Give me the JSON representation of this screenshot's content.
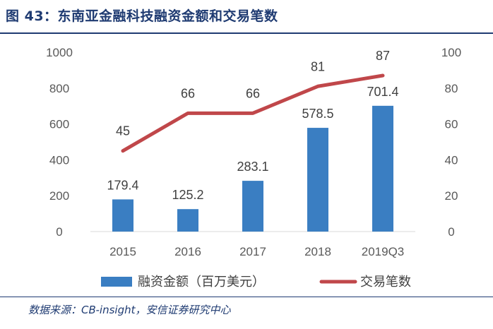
{
  "header": {
    "title": "图 43：东南亚金融科技融资金额和交易笔数"
  },
  "footer": {
    "source": "数据来源：CB-insight，安信证券研究中心"
  },
  "colors": {
    "bar": "#3a7ec2",
    "line": "#c0474a",
    "title": "#1f3b72"
  },
  "chart_data": {
    "type": "bar",
    "categories": [
      "2015",
      "2016",
      "2017",
      "2018",
      "2019Q3"
    ],
    "series": [
      {
        "name": "融资金额（百万美元）",
        "type": "bar",
        "axis": "left",
        "values": [
          179.4,
          125.2,
          283.1,
          578.5,
          701.4
        ],
        "labels": [
          "179.4",
          "125.2",
          "283.1",
          "578.5",
          "701.4"
        ]
      },
      {
        "name": "交易笔数",
        "type": "line",
        "axis": "right",
        "values": [
          45,
          66,
          66,
          81,
          87
        ],
        "labels": [
          "45",
          "66",
          "66",
          "81",
          "87"
        ]
      }
    ],
    "y_left": {
      "ticks": [
        "0",
        "200",
        "400",
        "600",
        "800",
        "1000"
      ],
      "ylim": [
        0,
        1000
      ]
    },
    "y_right": {
      "ticks": [
        "0",
        "20",
        "40",
        "60",
        "80",
        "100"
      ],
      "ylim": [
        0,
        100
      ]
    },
    "grid": false,
    "legend_position": "bottom"
  }
}
